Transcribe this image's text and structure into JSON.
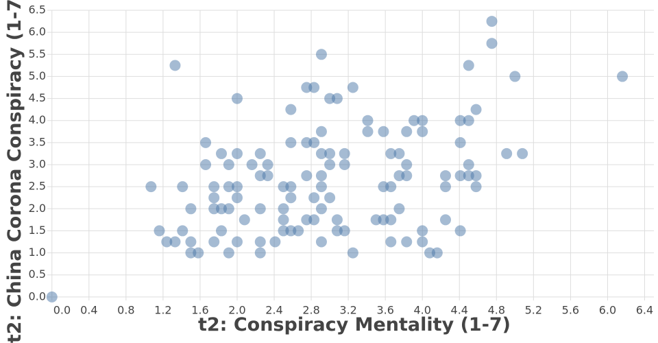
{
  "chart_data": {
    "type": "scatter",
    "xlabel": "t2: Conspiracy Mentality (1-7)",
    "ylabel": "t2: China Corona Conspiracy (1-7)",
    "color": "#4c78a8",
    "grid": true,
    "xlim": [
      -0.05,
      6.5
    ],
    "ylim": [
      -0.08,
      6.5
    ],
    "xticks": [
      {
        "value": 0,
        "label": "0.0"
      },
      0.4,
      0.8,
      1.2,
      1.6,
      {
        "value": 2,
        "label": "2.0"
      },
      2.4,
      2.8,
      3.2,
      3.6,
      {
        "value": 4,
        "label": "4.0"
      },
      4.4,
      4.8,
      5.2,
      5.6,
      {
        "value": 6,
        "label": "6.0"
      },
      6.4
    ],
    "yticks": [
      {
        "value": 0,
        "label": "0.0"
      },
      0.5,
      {
        "value": 1,
        "label": "1.0"
      },
      1.5,
      {
        "value": 2,
        "label": "2.0"
      },
      2.5,
      {
        "value": 3,
        "label": "3.0"
      },
      3.5,
      {
        "value": 4,
        "label": "4.0"
      },
      4.5,
      {
        "value": 5,
        "label": "5.0"
      },
      5.5,
      {
        "value": 6,
        "label": "6.0"
      },
      6.5
    ],
    "x": [
      0,
      1.07,
      1.16,
      1.24,
      1.33,
      1.33,
      1.41,
      1.41,
      1.5,
      1.5,
      1.5,
      1.58,
      1.66,
      1.66,
      1.75,
      1.75,
      1.75,
      1.75,
      1.83,
      1.83,
      1.83,
      1.91,
      1.91,
      1.91,
      1.91,
      2.0,
      2.0,
      2.0,
      2.0,
      2.0,
      2.08,
      2.16,
      2.25,
      2.25,
      2.25,
      2.25,
      2.25,
      2.33,
      2.33,
      2.41,
      2.5,
      2.5,
      2.5,
      2.5,
      2.58,
      2.58,
      2.58,
      2.58,
      2.58,
      2.66,
      2.75,
      2.75,
      2.75,
      2.75,
      2.83,
      2.83,
      2.83,
      2.83,
      2.91,
      2.91,
      2.91,
      2.91,
      2.91,
      2.91,
      2.91,
      3.0,
      3.0,
      3.0,
      3.0,
      3.08,
      3.08,
      3.08,
      3.16,
      3.16,
      3.16,
      3.25,
      3.25,
      3.41,
      3.41,
      3.5,
      3.58,
      3.58,
      3.58,
      3.66,
      3.66,
      3.66,
      3.66,
      3.75,
      3.75,
      3.75,
      3.83,
      3.83,
      3.83,
      3.83,
      3.91,
      4.0,
      4.0,
      4.0,
      4.0,
      4.08,
      4.16,
      4.25,
      4.25,
      4.25,
      4.41,
      4.41,
      4.41,
      4.41,
      4.5,
      4.5,
      4.5,
      4.5,
      4.58,
      4.58,
      4.58,
      4.75,
      4.75,
      5.0,
      4.91,
      5.08,
      6.16
    ],
    "values": [
      0,
      2.5,
      1.5,
      1.25,
      5.25,
      1.25,
      2.5,
      1.5,
      2.0,
      1.25,
      1.0,
      1.0,
      3.5,
      3.0,
      2.5,
      2.25,
      2.0,
      1.25,
      3.25,
      2.0,
      1.5,
      3.0,
      2.5,
      2.0,
      1.0,
      4.5,
      3.25,
      2.5,
      2.25,
      1.25,
      1.75,
      3.0,
      3.25,
      2.75,
      2.0,
      1.25,
      1.0,
      3.0,
      2.75,
      1.25,
      2.5,
      2.0,
      1.75,
      1.5,
      4.25,
      3.5,
      2.5,
      2.25,
      1.5,
      1.5,
      4.75,
      3.5,
      2.75,
      1.75,
      4.75,
      3.5,
      2.25,
      1.75,
      5.5,
      3.75,
      3.25,
      2.75,
      2.5,
      2.0,
      1.25,
      4.5,
      3.25,
      3.0,
      2.25,
      4.5,
      1.75,
      1.5,
      3.25,
      3.0,
      1.5,
      4.75,
      1.0,
      4.0,
      3.75,
      1.75,
      3.75,
      2.5,
      1.75,
      3.25,
      2.5,
      1.75,
      1.25,
      3.25,
      2.75,
      2.0,
      3.75,
      3.0,
      2.75,
      1.25,
      4.0,
      4.0,
      3.75,
      1.5,
      1.25,
      1.0,
      1.0,
      2.75,
      2.5,
      1.75,
      4.0,
      3.5,
      2.75,
      1.5,
      5.25,
      4.0,
      3.0,
      2.75,
      4.25,
      2.75,
      2.5,
      6.25,
      5.75,
      5.0,
      3.25,
      3.25,
      5.0
    ]
  }
}
